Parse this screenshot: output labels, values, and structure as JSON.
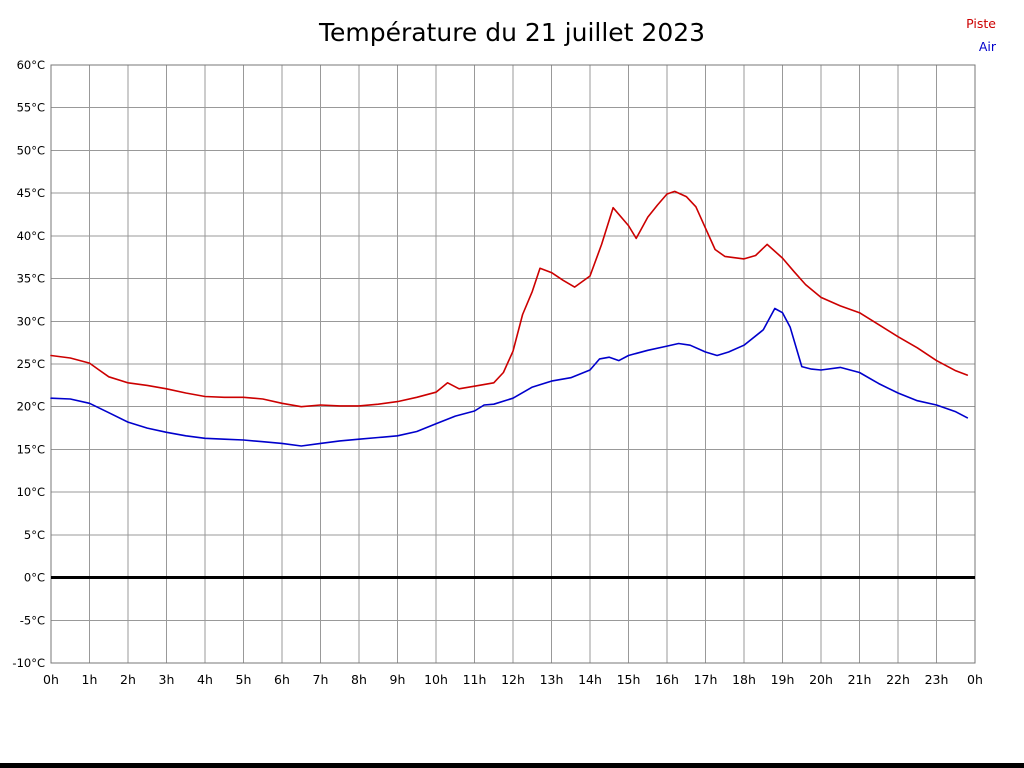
{
  "chart_data": {
    "type": "line",
    "title": "Température du 21 juillet 2023",
    "xlabel": "",
    "ylabel": "",
    "xlim": [
      0,
      24
    ],
    "ylim": [
      -10,
      60
    ],
    "y_step": 5,
    "grid": true,
    "grid_color": "#999999",
    "frame_color": "#777777",
    "zero_line_color": "#000000",
    "legend_position": "top-right",
    "x_tick_labels": [
      "0h",
      "1h",
      "2h",
      "3h",
      "4h",
      "5h",
      "6h",
      "7h",
      "8h",
      "9h",
      "10h",
      "11h",
      "12h",
      "13h",
      "14h",
      "15h",
      "16h",
      "17h",
      "18h",
      "19h",
      "20h",
      "21h",
      "22h",
      "23h",
      "0h"
    ],
    "y_tick_labels": [
      "60°C",
      "55°C",
      "50°C",
      "45°C",
      "40°C",
      "35°C",
      "30°C",
      "25°C",
      "20°C",
      "15°C",
      "10°C",
      "5°C",
      "0°C",
      "-5°C",
      "-10°C"
    ],
    "series": [
      {
        "name": "Piste",
        "color": "#cc0000",
        "points": [
          [
            0,
            26
          ],
          [
            0.5,
            25.7
          ],
          [
            1,
            25.1
          ],
          [
            1.25,
            24.3
          ],
          [
            1.5,
            23.5
          ],
          [
            2,
            22.8
          ],
          [
            2.5,
            22.5
          ],
          [
            3,
            22.1
          ],
          [
            3.5,
            21.6
          ],
          [
            4,
            21.2
          ],
          [
            4.5,
            21.1
          ],
          [
            5,
            21.1
          ],
          [
            5.5,
            20.9
          ],
          [
            6,
            20.4
          ],
          [
            6.5,
            20
          ],
          [
            7,
            20.2
          ],
          [
            7.5,
            20.1
          ],
          [
            8,
            20.1
          ],
          [
            8.5,
            20.3
          ],
          [
            9,
            20.6
          ],
          [
            9.5,
            21.1
          ],
          [
            10,
            21.7
          ],
          [
            10.3,
            22.8
          ],
          [
            10.6,
            22.1
          ],
          [
            11,
            22.4
          ],
          [
            11.5,
            22.8
          ],
          [
            11.75,
            24
          ],
          [
            12,
            26.5
          ],
          [
            12.25,
            30.8
          ],
          [
            12.5,
            33.5
          ],
          [
            12.7,
            36.2
          ],
          [
            13,
            35.7
          ],
          [
            13.3,
            34.8
          ],
          [
            13.6,
            34
          ],
          [
            14,
            35.3
          ],
          [
            14.3,
            39
          ],
          [
            14.6,
            43.3
          ],
          [
            15,
            41.2
          ],
          [
            15.2,
            39.7
          ],
          [
            15.5,
            42.2
          ],
          [
            15.75,
            43.6
          ],
          [
            16,
            44.9
          ],
          [
            16.2,
            45.2
          ],
          [
            16.5,
            44.6
          ],
          [
            16.75,
            43.4
          ],
          [
            17,
            40.9
          ],
          [
            17.25,
            38.4
          ],
          [
            17.5,
            37.6
          ],
          [
            18,
            37.3
          ],
          [
            18.3,
            37.7
          ],
          [
            18.6,
            39
          ],
          [
            19,
            37.4
          ],
          [
            19.3,
            35.8
          ],
          [
            19.6,
            34.3
          ],
          [
            20,
            32.8
          ],
          [
            20.5,
            31.8
          ],
          [
            21,
            31
          ],
          [
            21.5,
            29.6
          ],
          [
            22,
            28.2
          ],
          [
            22.5,
            26.9
          ],
          [
            23,
            25.4
          ],
          [
            23.5,
            24.2
          ],
          [
            23.8,
            23.7
          ]
        ]
      },
      {
        "name": "Air",
        "color": "#0000cc",
        "points": [
          [
            0,
            21
          ],
          [
            0.5,
            20.9
          ],
          [
            1,
            20.4
          ],
          [
            1.5,
            19.3
          ],
          [
            2,
            18.2
          ],
          [
            2.5,
            17.5
          ],
          [
            3,
            17
          ],
          [
            3.5,
            16.6
          ],
          [
            4,
            16.3
          ],
          [
            4.5,
            16.2
          ],
          [
            5,
            16.1
          ],
          [
            5.5,
            15.9
          ],
          [
            6,
            15.7
          ],
          [
            6.5,
            15.4
          ],
          [
            7,
            15.7
          ],
          [
            7.5,
            16
          ],
          [
            8,
            16.2
          ],
          [
            8.5,
            16.4
          ],
          [
            9,
            16.6
          ],
          [
            9.5,
            17.1
          ],
          [
            10,
            18
          ],
          [
            10.5,
            18.9
          ],
          [
            11,
            19.5
          ],
          [
            11.25,
            20.2
          ],
          [
            11.5,
            20.3
          ],
          [
            12,
            21
          ],
          [
            12.5,
            22.3
          ],
          [
            13,
            23
          ],
          [
            13.5,
            23.4
          ],
          [
            14,
            24.3
          ],
          [
            14.25,
            25.6
          ],
          [
            14.5,
            25.8
          ],
          [
            14.75,
            25.4
          ],
          [
            15,
            26
          ],
          [
            15.5,
            26.6
          ],
          [
            16,
            27.1
          ],
          [
            16.3,
            27.4
          ],
          [
            16.6,
            27.2
          ],
          [
            17,
            26.4
          ],
          [
            17.3,
            26
          ],
          [
            17.6,
            26.4
          ],
          [
            18,
            27.2
          ],
          [
            18.5,
            29
          ],
          [
            18.8,
            31.5
          ],
          [
            19,
            31
          ],
          [
            19.2,
            29.3
          ],
          [
            19.5,
            24.7
          ],
          [
            19.75,
            24.4
          ],
          [
            20,
            24.3
          ],
          [
            20.5,
            24.6
          ],
          [
            21,
            24
          ],
          [
            21.5,
            22.7
          ],
          [
            22,
            21.6
          ],
          [
            22.5,
            20.7
          ],
          [
            23,
            20.2
          ],
          [
            23.5,
            19.4
          ],
          [
            23.8,
            18.7
          ]
        ]
      }
    ]
  }
}
